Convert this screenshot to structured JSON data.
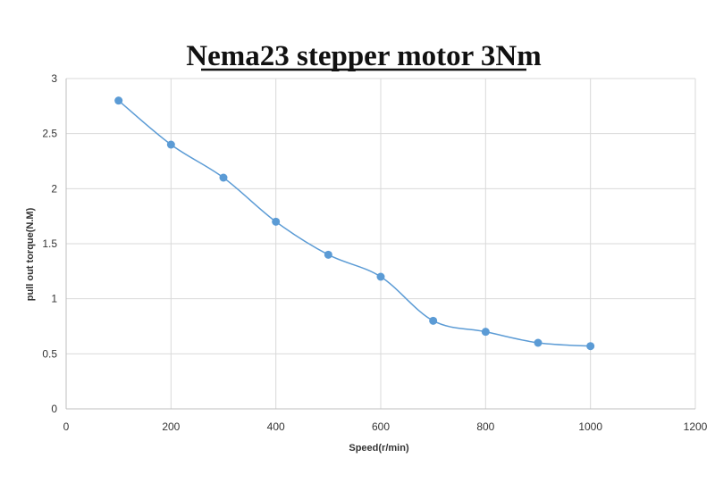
{
  "chart_data": {
    "type": "line",
    "title": "Nema23 stepper motor 3Nm",
    "xlabel": "Speed(r/min)",
    "ylabel": "pull out torque(N.M)",
    "xlim": [
      0,
      1200
    ],
    "ylim": [
      0,
      3
    ],
    "x_ticks": [
      "0",
      "200",
      "400",
      "600",
      "800",
      "1000",
      "1200"
    ],
    "y_ticks": [
      "0",
      "0.5",
      "1",
      "1.5",
      "2",
      "2.5",
      "3"
    ],
    "grid": true,
    "legend": "none",
    "series": [
      {
        "color": "#5b9bd5",
        "points": [
          {
            "x": 100,
            "y": 2.8
          },
          {
            "x": 200,
            "y": 2.4
          },
          {
            "x": 300,
            "y": 2.1
          },
          {
            "x": 400,
            "y": 1.7
          },
          {
            "x": 500,
            "y": 1.4
          },
          {
            "x": 600,
            "y": 1.2
          },
          {
            "x": 700,
            "y": 0.8
          },
          {
            "x": 800,
            "y": 0.7
          },
          {
            "x": 900,
            "y": 0.6
          },
          {
            "x": 1000,
            "y": 0.57
          }
        ]
      }
    ]
  }
}
